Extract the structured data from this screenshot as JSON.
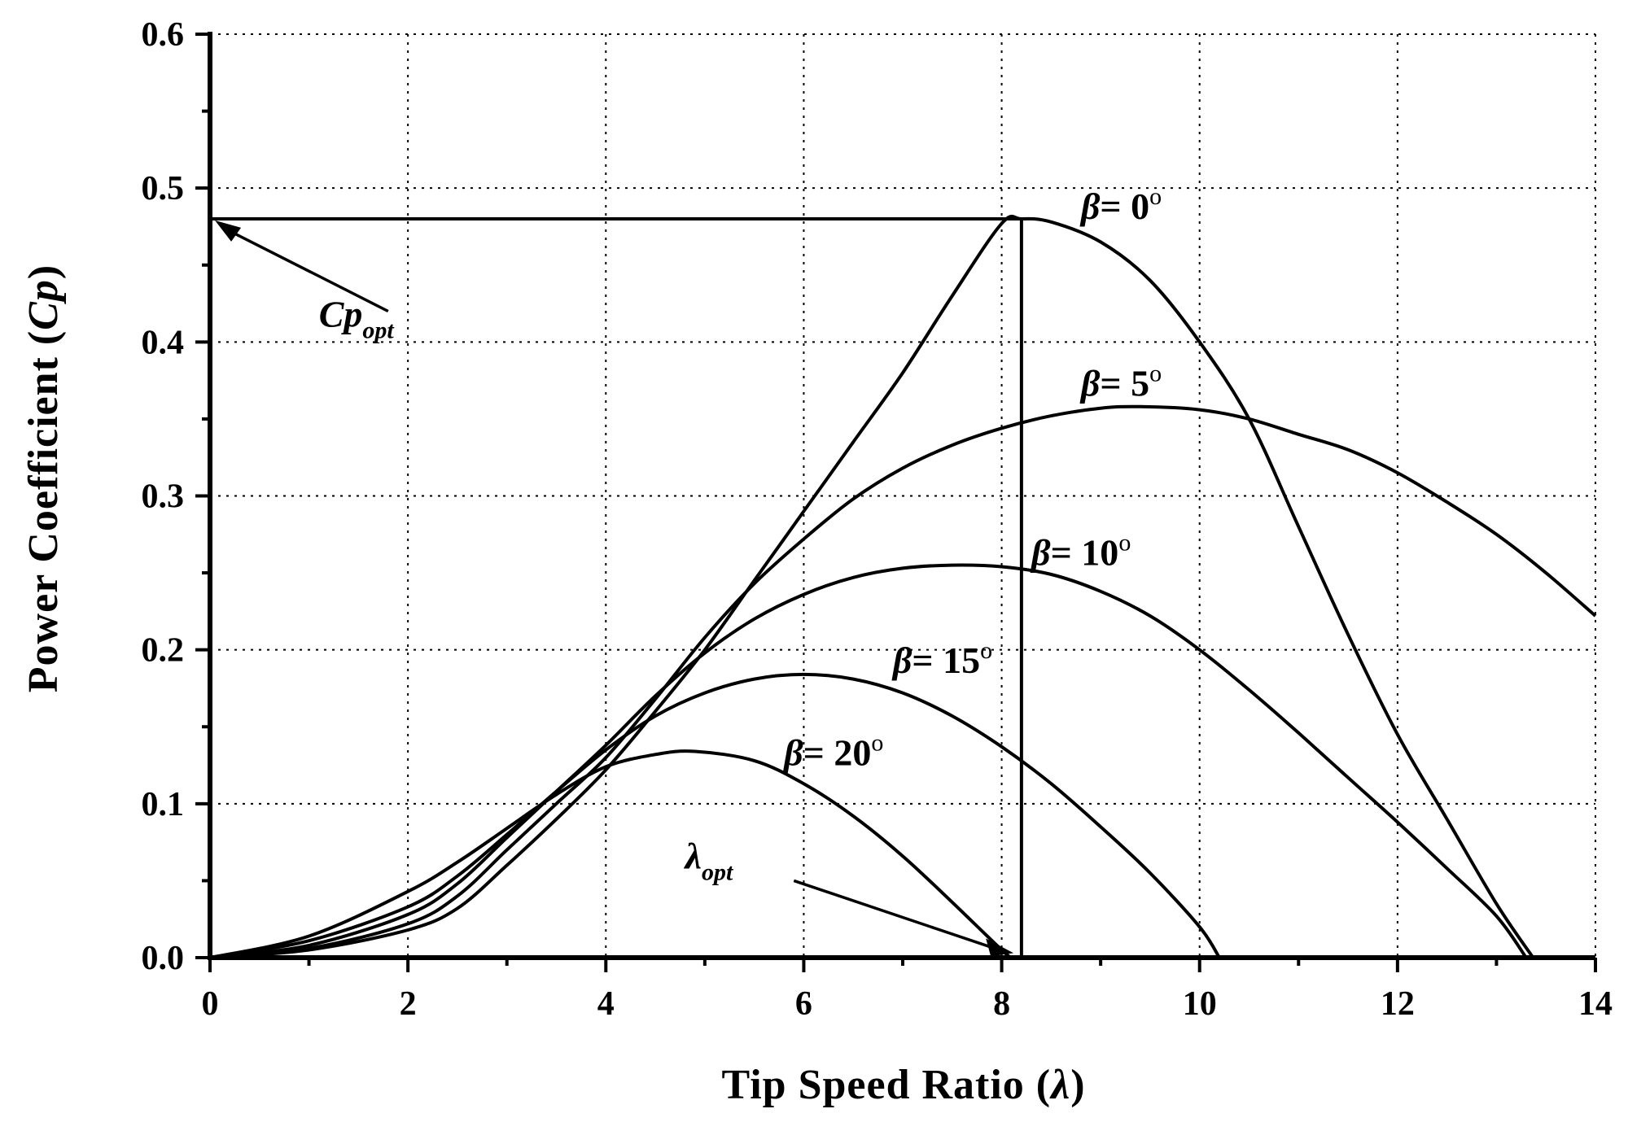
{
  "chart_data": {
    "type": "line",
    "title": "",
    "xlabel": "Tip Speed Ratio (",
    "xlabel_symbol": "λ",
    "xlabel_close": ")",
    "ylabel": "Power Coefficient (",
    "ylabel_symbol": "Cp",
    "ylabel_close": ")",
    "xlim": [
      0,
      14
    ],
    "ylim": [
      0,
      0.6
    ],
    "xticks": [
      0,
      2,
      4,
      6,
      8,
      10,
      12,
      14
    ],
    "xtick_labels": [
      "0",
      "2",
      "4",
      "6",
      "8",
      "10",
      "12",
      "14"
    ],
    "xminor": [
      1,
      3,
      5,
      7,
      9,
      11,
      13
    ],
    "yticks": [
      0,
      0.1,
      0.2,
      0.3,
      0.4,
      0.5,
      0.6
    ],
    "ytick_labels": [
      "0.0",
      "0.1",
      "0.2",
      "0.3",
      "0.4",
      "0.5",
      "0.6"
    ],
    "yminor": [
      0.05,
      0.15,
      0.25,
      0.35,
      0.45,
      0.55
    ],
    "grid": true,
    "series": [
      {
        "label_symbol": "β",
        "label_text": "= 0",
        "label_degree": "o",
        "points": [
          [
            0,
            0
          ],
          [
            1,
            0.005
          ],
          [
            2,
            0.018
          ],
          [
            2.5,
            0.032
          ],
          [
            3,
            0.06
          ],
          [
            3.5,
            0.09
          ],
          [
            4,
            0.122
          ],
          [
            4.5,
            0.16
          ],
          [
            5,
            0.2
          ],
          [
            5.5,
            0.245
          ],
          [
            6,
            0.29
          ],
          [
            6.5,
            0.335
          ],
          [
            7,
            0.38
          ],
          [
            7.5,
            0.43
          ],
          [
            8,
            0.477
          ],
          [
            8.2,
            0.48
          ],
          [
            8.5,
            0.478
          ],
          [
            9,
            0.465
          ],
          [
            9.5,
            0.44
          ],
          [
            10,
            0.4
          ],
          [
            10.5,
            0.35
          ],
          [
            11,
            0.28
          ],
          [
            11.5,
            0.21
          ],
          [
            12,
            0.145
          ],
          [
            12.5,
            0.09
          ],
          [
            13,
            0.035
          ],
          [
            13.37,
            0
          ]
        ]
      },
      {
        "label_symbol": "β",
        "label_text": "= 5",
        "label_degree": "o",
        "points": [
          [
            0,
            0
          ],
          [
            1,
            0.006
          ],
          [
            2,
            0.022
          ],
          [
            2.5,
            0.04
          ],
          [
            3,
            0.07
          ],
          [
            3.5,
            0.1
          ],
          [
            4,
            0.13
          ],
          [
            4.5,
            0.168
          ],
          [
            5,
            0.208
          ],
          [
            5.5,
            0.243
          ],
          [
            6,
            0.272
          ],
          [
            6.5,
            0.298
          ],
          [
            7,
            0.318
          ],
          [
            7.5,
            0.333
          ],
          [
            8,
            0.344
          ],
          [
            8.5,
            0.352
          ],
          [
            9,
            0.357
          ],
          [
            9.4,
            0.358
          ],
          [
            10,
            0.356
          ],
          [
            10.5,
            0.35
          ],
          [
            11,
            0.34
          ],
          [
            11.5,
            0.33
          ],
          [
            12,
            0.315
          ],
          [
            12.5,
            0.296
          ],
          [
            13,
            0.275
          ],
          [
            13.5,
            0.25
          ],
          [
            14,
            0.222
          ]
        ]
      },
      {
        "label_symbol": "β",
        "label_text": "= 10",
        "label_degree": "o",
        "points": [
          [
            0,
            0
          ],
          [
            1,
            0.008
          ],
          [
            2,
            0.028
          ],
          [
            2.5,
            0.048
          ],
          [
            3,
            0.078
          ],
          [
            3.5,
            0.108
          ],
          [
            4,
            0.138
          ],
          [
            4.5,
            0.17
          ],
          [
            5,
            0.198
          ],
          [
            5.5,
            0.22
          ],
          [
            6,
            0.236
          ],
          [
            6.5,
            0.247
          ],
          [
            7,
            0.253
          ],
          [
            7.5,
            0.255
          ],
          [
            8,
            0.254
          ],
          [
            8.5,
            0.249
          ],
          [
            9,
            0.238
          ],
          [
            9.5,
            0.222
          ],
          [
            10,
            0.2
          ],
          [
            10.5,
            0.174
          ],
          [
            11,
            0.146
          ],
          [
            11.5,
            0.117
          ],
          [
            12,
            0.088
          ],
          [
            12.5,
            0.058
          ],
          [
            13,
            0.027
          ],
          [
            13.3,
            0
          ]
        ]
      },
      {
        "label_symbol": "β",
        "label_text": "= 15",
        "label_degree": "o",
        "points": [
          [
            0,
            0
          ],
          [
            1,
            0.011
          ],
          [
            2,
            0.033
          ],
          [
            2.5,
            0.053
          ],
          [
            3,
            0.08
          ],
          [
            3.5,
            0.108
          ],
          [
            4,
            0.135
          ],
          [
            4.5,
            0.157
          ],
          [
            5,
            0.172
          ],
          [
            5.5,
            0.181
          ],
          [
            6,
            0.184
          ],
          [
            6.5,
            0.181
          ],
          [
            7,
            0.172
          ],
          [
            7.5,
            0.157
          ],
          [
            8,
            0.137
          ],
          [
            8.5,
            0.113
          ],
          [
            9,
            0.085
          ],
          [
            9.5,
            0.055
          ],
          [
            10,
            0.02
          ],
          [
            10.2,
            0
          ]
        ]
      },
      {
        "label_symbol": "β",
        "label_text": "= 20",
        "label_degree": "o",
        "points": [
          [
            0,
            0
          ],
          [
            1,
            0.014
          ],
          [
            2,
            0.043
          ],
          [
            2.5,
            0.062
          ],
          [
            3,
            0.084
          ],
          [
            3.5,
            0.106
          ],
          [
            4,
            0.124
          ],
          [
            4.5,
            0.132
          ],
          [
            4.9,
            0.134
          ],
          [
            5.5,
            0.128
          ],
          [
            6,
            0.113
          ],
          [
            6.5,
            0.092
          ],
          [
            7,
            0.066
          ],
          [
            7.5,
            0.036
          ],
          [
            8,
            0.005
          ],
          [
            8.1,
            0
          ]
        ]
      }
    ],
    "reference_lines": {
      "cp_opt": 0.48,
      "lambda_opt": 8.2
    },
    "annotations": {
      "cp_opt_main": "Cp",
      "cp_opt_sub": "opt",
      "lambda_opt_main": "λ",
      "lambda_opt_sub": "opt"
    }
  }
}
